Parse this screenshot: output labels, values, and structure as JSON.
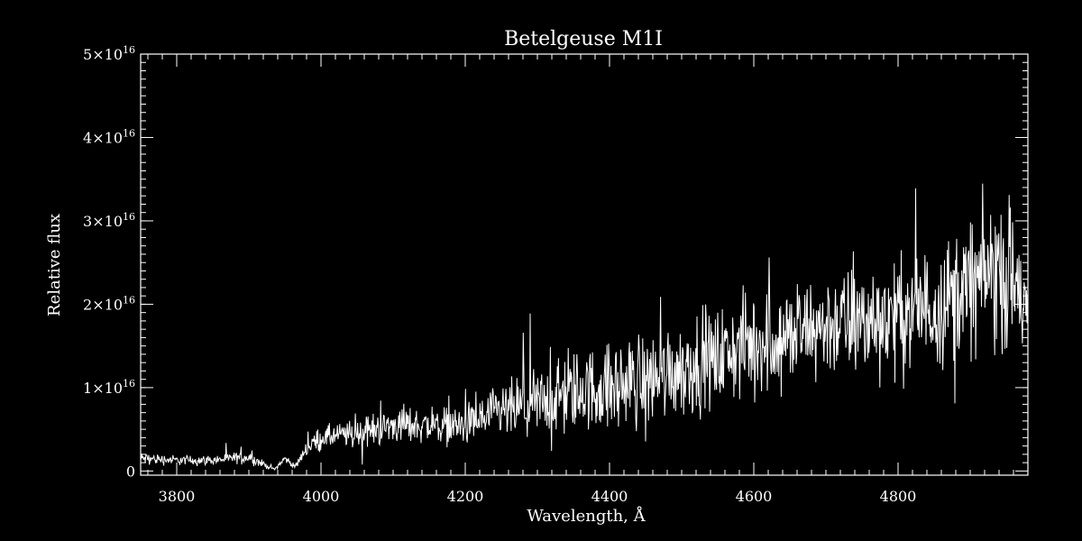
{
  "chart_data": {
    "type": "line",
    "title": "Betelgeuse  M1I",
    "xlabel": "Wavelength, Å",
    "ylabel": "Relative flux",
    "xlim": [
      3750,
      4980
    ],
    "ylim": [
      -500000000000000.0,
      5e+16
    ],
    "grid": false,
    "legend": "none",
    "colors": {
      "background": "#000000",
      "foreground": "#ffffff"
    },
    "x_ticks": [
      {
        "value": 3800,
        "label": "3800"
      },
      {
        "value": 4000,
        "label": "4000"
      },
      {
        "value": 4200,
        "label": "4200"
      },
      {
        "value": 4400,
        "label": "4400"
      },
      {
        "value": 4600,
        "label": "4600"
      },
      {
        "value": 4800,
        "label": "4800"
      }
    ],
    "y_ticks": [
      {
        "value": 0,
        "label": "0",
        "exp": ""
      },
      {
        "value": 1e+16,
        "label": "1×10",
        "exp": "16"
      },
      {
        "value": 2e+16,
        "label": "2×10",
        "exp": "16"
      },
      {
        "value": 3e+16,
        "label": "3×10",
        "exp": "16"
      },
      {
        "value": 4e+16,
        "label": "4×10",
        "exp": "16"
      },
      {
        "value": 5e+16,
        "label": "5×10",
        "exp": "16"
      }
    ],
    "x_minor_step": 20,
    "y_minor_step": 1000000000000000.0,
    "series": [
      {
        "color": "#ffffff",
        "envelope": {
          "x": [
            3750,
            3800,
            3850,
            3900,
            3925,
            3935,
            3950,
            3965,
            3980,
            4000,
            4050,
            4100,
            4150,
            4200,
            4250,
            4300,
            4350,
            4400,
            4450,
            4500,
            4550,
            4600,
            4650,
            4700,
            4750,
            4800,
            4850,
            4900,
            4930,
            4960,
            4980
          ],
          "mean": [
            1500000000000000.0,
            1300000000000000.0,
            1300000000000000.0,
            1700000000000000.0,
            600000000000000.0,
            200000000000000.0,
            1500000000000000.0,
            500000000000000.0,
            2800000000000000.0,
            4000000000000000.0,
            4500000000000000.0,
            5500000000000000.0,
            5500000000000000.0,
            5500000000000000.0,
            7000000000000000.0,
            8000000000000000.0,
            9500000000000000.0,
            1e+16,
            1.1e+16,
            1.25e+16,
            1.35e+16,
            1.55e+16,
            1.6e+16,
            1.75e+16,
            1.8e+16,
            1.85e+16,
            2e+16,
            2.2e+16,
            2.4e+16,
            2.3e+16,
            1.9e+16
          ],
          "noise": [
            800000000000000.0,
            600000000000000.0,
            600000000000000.0,
            800000000000000.0,
            300000000000000.0,
            200000000000000.0,
            500000000000000.0,
            300000000000000.0,
            1000000000000000.0,
            1400000000000000.0,
            1800000000000000.0,
            2200000000000000.0,
            2200000000000000.0,
            2500000000000000.0,
            3500000000000000.0,
            4500000000000000.0,
            5000000000000000.0,
            5500000000000000.0,
            6000000000000000.0,
            6000000000000000.0,
            6000000000000000.0,
            6500000000000000.0,
            6500000000000000.0,
            6500000000000000.0,
            7000000000000000.0,
            7000000000000000.0,
            7500000000000000.0,
            8500000000000000.0,
            9000000000000000.0,
            9500000000000000.0,
            5000000000000000.0
          ]
        },
        "sample_step": 0.8
      }
    ]
  }
}
